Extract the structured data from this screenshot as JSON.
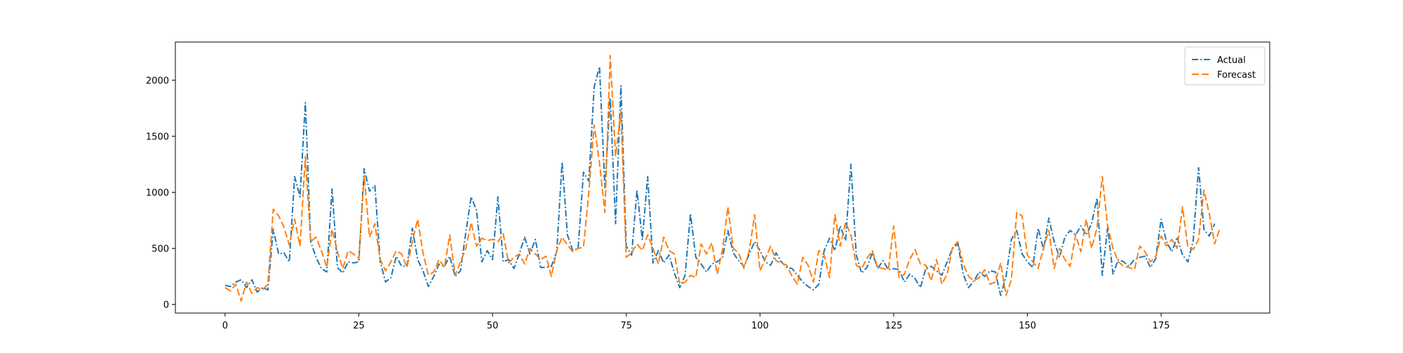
{
  "chart_data": {
    "type": "line",
    "title": "",
    "xlabel": "",
    "ylabel": "",
    "xlim": [
      -9.3,
      195.3
    ],
    "ylim": [
      -77,
      2340
    ],
    "xticks": [
      0,
      25,
      50,
      75,
      100,
      125,
      150,
      175
    ],
    "xtick_labels": [
      "0",
      "25",
      "50",
      "75",
      "100",
      "125",
      "150",
      "175"
    ],
    "yticks": [
      0,
      500,
      1000,
      1500,
      2000
    ],
    "ytick_labels": [
      "0",
      "500",
      "1000",
      "1500",
      "2000"
    ],
    "grid": false,
    "legend_position": "top-right",
    "series": [
      {
        "name": "Actual",
        "color": "#1f77b4",
        "dash": "dash-dot",
        "values": [
          170,
          160,
          200,
          220,
          150,
          220,
          110,
          150,
          130,
          670,
          450,
          460,
          380,
          1140,
          960,
          1800,
          560,
          420,
          320,
          290,
          1030,
          330,
          280,
          380,
          370,
          380,
          1210,
          1010,
          1060,
          380,
          200,
          240,
          430,
          340,
          340,
          680,
          400,
          300,
          160,
          250,
          360,
          340,
          430,
          250,
          300,
          640,
          960,
          840,
          380,
          480,
          400,
          960,
          380,
          400,
          320,
          450,
          600,
          450,
          580,
          330,
          330,
          340,
          470,
          1270,
          620,
          480,
          500,
          1180,
          1100,
          1940,
          2120,
          1040,
          1840,
          720,
          1950,
          520,
          440,
          1020,
          580,
          1140,
          370,
          480,
          370,
          440,
          280,
          150,
          260,
          810,
          420,
          360,
          290,
          360,
          380,
          420,
          660,
          460,
          390,
          340,
          450,
          560,
          480,
          380,
          350,
          460,
          380,
          330,
          320,
          260,
          200,
          160,
          130,
          180,
          480,
          590,
          480,
          700,
          570,
          1250,
          440,
          280,
          330,
          460,
          320,
          390,
          310,
          320,
          310,
          200,
          270,
          230,
          150,
          320,
          340,
          300,
          260,
          380,
          500,
          540,
          270,
          150,
          210,
          290,
          250,
          300,
          290,
          80,
          250,
          580,
          660,
          450,
          380,
          330,
          680,
          490,
          770,
          560,
          420,
          600,
          660,
          620,
          700,
          620,
          720,
          950,
          260,
          690,
          270,
          400,
          380,
          340,
          400,
          420,
          430,
          330,
          410,
          760,
          560,
          470,
          600,
          440,
          380,
          570,
          1220,
          670,
          610,
          720
        ]
      },
      {
        "name": "Forecast",
        "color": "#ff7f0e",
        "dash": "dashed",
        "values": [
          150,
          120,
          180,
          30,
          200,
          100,
          150,
          130,
          180,
          850,
          790,
          690,
          530,
          760,
          520,
          1320,
          560,
          600,
          480,
          330,
          670,
          470,
          320,
          480,
          450,
          410,
          1150,
          600,
          720,
          400,
          300,
          380,
          480,
          450,
          330,
          560,
          760,
          460,
          260,
          290,
          400,
          330,
          620,
          260,
          380,
          500,
          730,
          520,
          590,
          570,
          580,
          560,
          630,
          370,
          420,
          450,
          360,
          500,
          450,
          400,
          430,
          250,
          480,
          600,
          530,
          470,
          500,
          510,
          1000,
          1600,
          1260,
          820,
          2220,
          1320,
          1720,
          420,
          460,
          540,
          480,
          620,
          500,
          360,
          600,
          480,
          450,
          180,
          200,
          260,
          240,
          540,
          450,
          550,
          270,
          490,
          870,
          500,
          460,
          320,
          480,
          800,
          300,
          410,
          520,
          390,
          370,
          350,
          250,
          180,
          420,
          350,
          200,
          480,
          440,
          240,
          800,
          520,
          730,
          620,
          350,
          320,
          410,
          480,
          330,
          320,
          310,
          700,
          240,
          270,
          400,
          490,
          360,
          350,
          210,
          400,
          180,
          270,
          510,
          560,
          360,
          250,
          210,
          240,
          310,
          180,
          200,
          370,
          80,
          220,
          820,
          790,
          440,
          380,
          320,
          500,
          660,
          320,
          500,
          400,
          340,
          620,
          470,
          760,
          500,
          680,
          1140,
          700,
          500,
          380,
          340,
          330,
          310,
          520,
          470,
          380,
          430,
          610,
          520,
          580,
          500,
          870,
          510,
          490,
          580,
          1020,
          810,
          540,
          680
        ]
      }
    ]
  }
}
